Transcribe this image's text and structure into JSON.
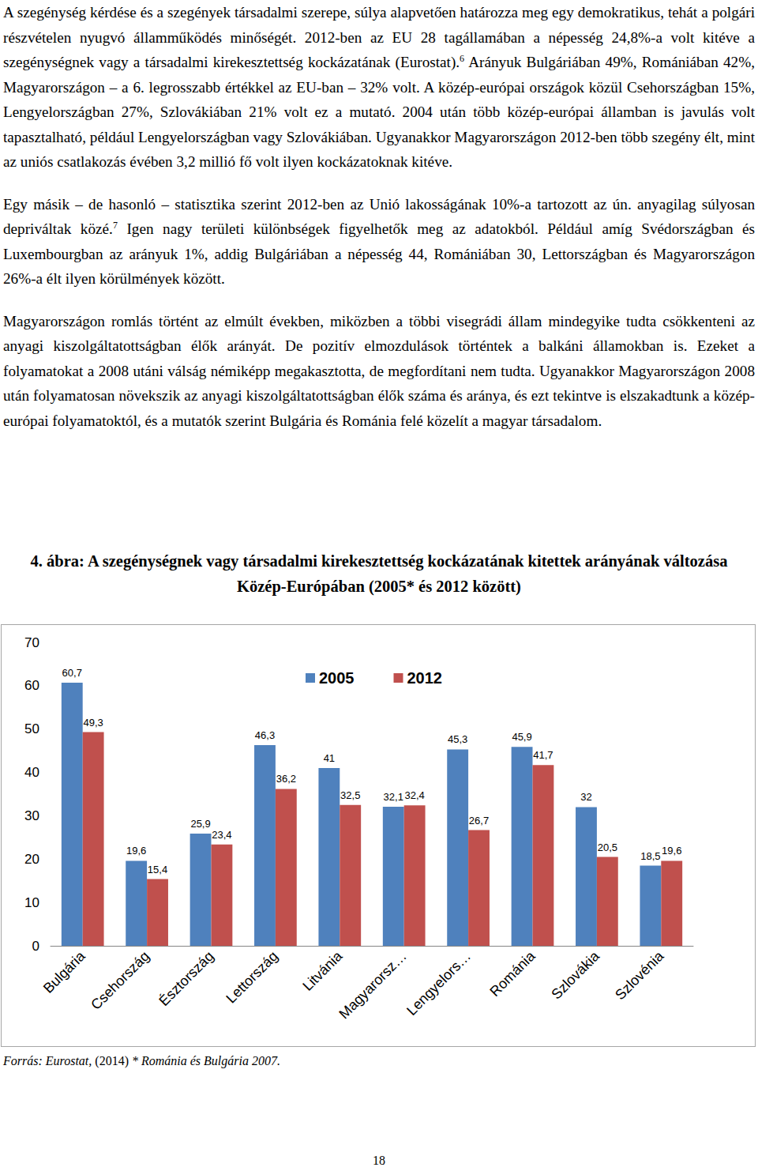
{
  "paragraphs": [
    [
      {
        "text": "A szegénység kérdése és a szegények társadalmi szerepe, súlya alapvetően határozza meg egy demokratikus, tehát a polgári részvételen nyugvó államműködés minőségét. 2012-ben az EU 28 tagállamában a népesség 24,8%-a volt kitéve a szegénységnek vagy a társadalmi kirekesztettség kockázatának (Eurostat)."
      },
      {
        "footnote": "6"
      },
      {
        "text": " Arányuk Bulgáriában 49%, Romániában 42%, Magyarországon – a 6. legrosszabb értékkel az EU-ban – 32% volt. A közép-európai országok közül Csehországban 15%, Lengyelországban 27%, Szlovákiában 21% volt ez a mutató. 2004 után több közép-európai államban is javulás volt tapasztalható, például Lengyelországban vagy Szlovákiában. Ugyanakkor Magyarországon 2012-ben több szegény élt, mint az uniós csatlakozás évében 3,2 millió fő volt ilyen kockázatoknak kitéve."
      }
    ],
    [
      {
        "text": "Egy másik – de hasonló – statisztika szerint 2012-ben az Unió lakosságának 10%-a tartozott az ún. anyagilag súlyosan depriváltak közé."
      },
      {
        "footnote": "7"
      },
      {
        "text": " Igen nagy területi különbségek figyelhetők meg az adatokból. Például amíg Svédországban és Luxembourgban az arányuk 1%, addig Bulgáriában a népesség 44, Romániában 30, Lettországban és Magyarországon 26%-a élt ilyen körülmények között."
      }
    ],
    [
      {
        "text": "Magyarországon romlás történt az elmúlt években, miközben a többi visegrádi állam mindegyike tudta csökkenteni az anyagi kiszolgáltatottságban élők arányát. De pozitív elmozdulások történtek a balkáni államokban is. Ezeket a folyamatokat a 2008 utáni válság némiképp megakasztotta, de megfordítani nem tudta. Ugyanakkor Magyarországon 2008 után folyamatosan növekszik az anyagi kiszolgáltatottságban élők száma és aránya, és ezt tekintve is elszakadtunk a közép-európai folyamatoktól, és a mutatók szerint Bulgária és Románia felé közelít a magyar társadalom."
      }
    ]
  ],
  "chart_data": {
    "type": "bar",
    "title": "4. ábra: A szegénységnek vagy társadalmi kirekesztettség kockázatának kitettek arányának változása Közép-Európában (2005* és 2012 között)",
    "categories": [
      "Bulgária",
      "Csehország",
      "Észtország",
      "Lettország",
      "Litvánia",
      "Magyarorsz…",
      "Lengyelors…",
      "Románia",
      "Szlovákia",
      "Szlovénia"
    ],
    "series": [
      {
        "name": "2005",
        "color": "#4f81bd",
        "values": [
          60.7,
          19.6,
          25.9,
          46.3,
          41,
          32.1,
          45.3,
          45.9,
          32,
          18.5
        ],
        "value_labels": [
          "60,7",
          "19,6",
          "25,9",
          "46,3",
          "41",
          "32,1",
          "45,3",
          "45,9",
          "32",
          "18,5"
        ]
      },
      {
        "name": "2012",
        "color": "#c0504d",
        "values": [
          49.3,
          15.4,
          23.4,
          36.2,
          32.5,
          32.4,
          26.7,
          41.7,
          20.5,
          19.6
        ],
        "value_labels": [
          "49,3",
          "15,4",
          "23,4",
          "36,2",
          "32,5",
          "32,4",
          "26,7",
          "41,7",
          "20,5",
          "19,6"
        ]
      }
    ],
    "ylim": [
      0,
      70
    ],
    "yticks": [
      0,
      10,
      20,
      30,
      40,
      50,
      60,
      70
    ],
    "grid": false,
    "legend": "top",
    "data_labels": true
  },
  "source": [
    {
      "text": "Forrás: Eurostat,",
      "italic": true
    },
    {
      "text": " (2014) "
    },
    {
      "text": "* Románia és Bulgária 2007.",
      "italic": true
    }
  ],
  "page_number": "18"
}
